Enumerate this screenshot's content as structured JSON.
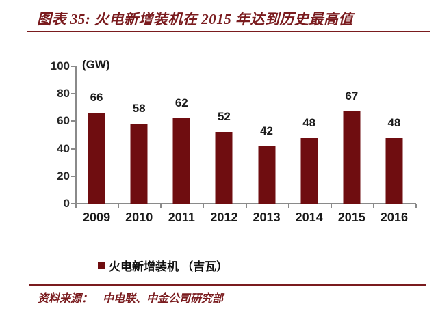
{
  "header": {
    "title": "图表 35: 火电新增装机在 2015 年达到历史最高值"
  },
  "chart_data": {
    "type": "bar",
    "title": "图表 35: 火电新增装机在 2015 年达到历史最高值",
    "unit_label": "(GW)",
    "categories": [
      "2009",
      "2010",
      "2011",
      "2012",
      "2013",
      "2014",
      "2015",
      "2016"
    ],
    "values": [
      66,
      58,
      62,
      52,
      42,
      48,
      67,
      48
    ],
    "ylim": [
      0,
      100
    ],
    "yticks": [
      100,
      80,
      60,
      40,
      20,
      0
    ],
    "grid": false,
    "data_labels": true,
    "legend": {
      "label": "火电新增装机 （吉瓦）",
      "position": "bottom"
    }
  },
  "footer": {
    "source_label": "资料来源：",
    "source": "中电联、中金公司研究部"
  },
  "colors": {
    "accent": "#7a1b1e",
    "bar": "#6f0d10",
    "axis": "#8a8a8a",
    "text": "#1a1a1a"
  }
}
